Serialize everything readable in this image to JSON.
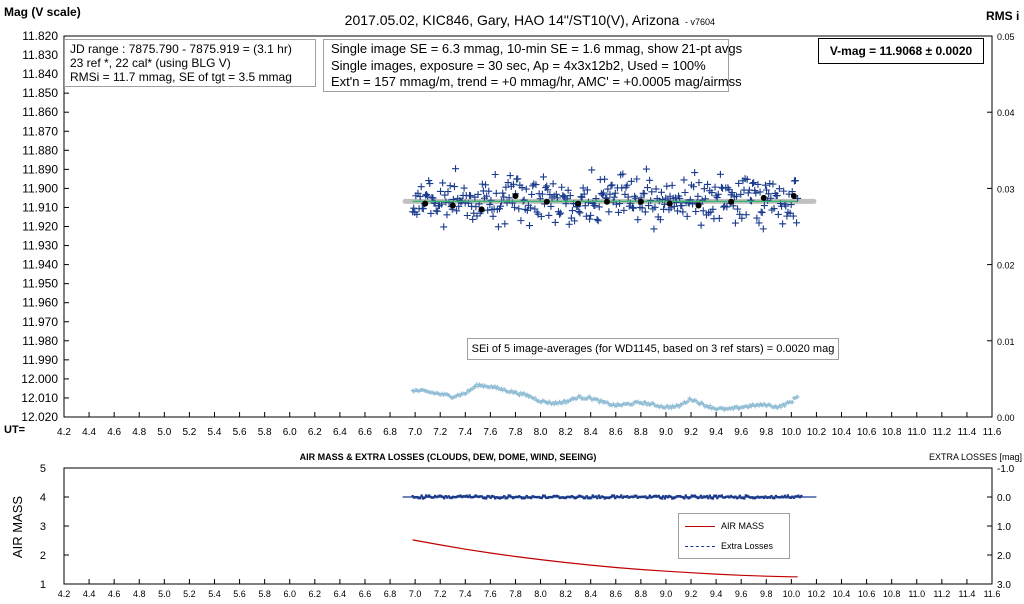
{
  "chart_data": [
    {
      "type": "scatter",
      "title": "2017.05.02,  KIC846,  Gary, HAO 14\"/ST10(V), Arizona",
      "subtitle": "- v7604",
      "ylabel": "Mag (V scale)",
      "y2label": "RMS i",
      "xlabel": "UT=",
      "xlim": [
        4.2,
        11.6
      ],
      "ylim": [
        11.82,
        12.02
      ],
      "y_reversed": true,
      "y2lim": [
        0.0,
        0.05
      ],
      "x_ticks": [
        "4.2",
        "4.4",
        "4.6",
        "4.8",
        "5.0",
        "5.2",
        "5.4",
        "5.6",
        "5.8",
        "6.0",
        "6.2",
        "6.4",
        "6.6",
        "6.8",
        "7.0",
        "7.2",
        "7.4",
        "7.6",
        "7.8",
        "8.0",
        "8.2",
        "8.4",
        "8.6",
        "8.8",
        "9.0",
        "9.2",
        "9.4",
        "9.6",
        "9.8",
        "10.0",
        "10.2",
        "10.4",
        "10.6",
        "10.8",
        "11.0",
        "11.2",
        "11.4",
        "11.6"
      ],
      "y_ticks": [
        "11.820",
        "11.830",
        "11.840",
        "11.850",
        "11.860",
        "11.870",
        "11.880",
        "11.890",
        "11.900",
        "11.910",
        "11.920",
        "11.930",
        "11.940",
        "11.950",
        "11.960",
        "11.970",
        "11.980",
        "11.990",
        "12.000",
        "12.010",
        "12.020"
      ],
      "y2_ticks": [
        "0.00",
        "0.01",
        "0.02",
        "0.03",
        "0.04",
        "0.05"
      ],
      "grid": false,
      "series": [
        {
          "kind": "single-images",
          "color": "#1a3a8c",
          "marker": "plus",
          "x_range": [
            6.98,
            10.05
          ],
          "y_center": 11.906,
          "scatter_mmag": 6.3
        },
        {
          "kind": "21-pt averages",
          "color": "#000000",
          "marker": "dot",
          "x": [
            7.08,
            7.3,
            7.53,
            7.8,
            8.05,
            8.3,
            8.53,
            8.8,
            9.03,
            9.26,
            9.52,
            9.78,
            10.02
          ],
          "y": [
            11.908,
            11.909,
            11.911,
            11.904,
            11.907,
            11.908,
            11.907,
            11.907,
            11.908,
            11.909,
            11.907,
            11.905,
            11.904
          ]
        },
        {
          "kind": "trend",
          "color": "#3cb371",
          "x": [
            6.98,
            10.05
          ],
          "y": [
            11.9068,
            11.9068
          ]
        },
        {
          "kind": "V-mag reference",
          "color": "#c0c0c0",
          "x": [
            6.92,
            10.18
          ],
          "y": [
            11.9068,
            11.9068
          ]
        },
        {
          "kind": "RMS i",
          "axis": "right",
          "color": "#8fbcd4",
          "x": [
            6.98,
            7.1,
            7.2,
            7.3,
            7.4,
            7.5,
            7.6,
            7.7,
            7.8,
            7.9,
            8.0,
            8.1,
            8.2,
            8.3,
            8.4,
            8.5,
            8.6,
            8.7,
            8.8,
            8.9,
            9.0,
            9.1,
            9.2,
            9.3,
            9.4,
            9.5,
            9.6,
            9.7,
            9.8,
            9.9,
            10.0,
            10.05
          ],
          "y": [
            0.0035,
            0.0033,
            0.003,
            0.0027,
            0.0031,
            0.0042,
            0.004,
            0.0036,
            0.0032,
            0.0028,
            0.0021,
            0.0018,
            0.002,
            0.0026,
            0.0025,
            0.0019,
            0.0015,
            0.0017,
            0.0019,
            0.0016,
            0.0013,
            0.0014,
            0.0024,
            0.0016,
            0.0011,
            0.001,
            0.0013,
            0.0015,
            0.0016,
            0.0013,
            0.002,
            0.0028
          ]
        }
      ],
      "annotations": {
        "left_box": [
          "JD range : 7875.790 - 7875.919 = (3.1 hr)",
          "23 ref *, 22 cal* (using BLG V)",
          "RMSi = 11.7 mmag, SE of tgt = 3.5 mmag"
        ],
        "mid_box": [
          "Single image SE = 6.3 mmag, 10-min SE = 1.6 mmag, show 21-pt avgs",
          "Single images, exposure = 30  sec, Ap = 4x3x12b2, Used = 100%",
          "Ext'n = 157 mmag/m, trend = +0 mmag/hr, AMC' = +0.0005 mag/airmss"
        ],
        "vmag": "V-mag = 11.9068 ± 0.0020",
        "sei": "SEi of 5 image-averages (for WD1145, based on 3 ref stars) = 0.0020 mag"
      }
    },
    {
      "type": "line",
      "title": "AIR MASS & EXTRA LOSSES (CLOUDS, DEW, DOME, WIND, SEEING)",
      "ylabel": "AIR MASS",
      "y2label": "EXTRA LOSSES [mag]",
      "xlim": [
        4.2,
        11.6
      ],
      "ylim": [
        1,
        5
      ],
      "y2lim": [
        -1.0,
        3.0
      ],
      "x_ticks": [
        "4.2",
        "4.4",
        "4.6",
        "4.8",
        "5.0",
        "5.2",
        "5.4",
        "5.6",
        "5.8",
        "6.0",
        "6.2",
        "6.4",
        "6.6",
        "6.8",
        "7.0",
        "7.2",
        "7.4",
        "7.6",
        "7.8",
        "8.0",
        "8.2",
        "8.4",
        "8.6",
        "8.8",
        "9.0",
        "9.2",
        "9.4",
        "9.6",
        "9.8",
        "10.0",
        "10.2",
        "10.4",
        "10.6",
        "10.8",
        "11.0",
        "11.2",
        "11.4",
        "11.6"
      ],
      "y_ticks": [
        "1",
        "2",
        "3",
        "4",
        "5"
      ],
      "y2_ticks": [
        "-1.0",
        "0.0",
        "1.0",
        "2.0",
        "3.0"
      ],
      "legend": {
        "placement": "bottom-right",
        "entries": [
          "AIR MASS",
          "Extra Losses"
        ]
      },
      "series": [
        {
          "name": "AIR MASS",
          "color": "#c00000",
          "x": [
            6.98,
            7.2,
            7.4,
            7.6,
            7.8,
            8.0,
            8.2,
            8.4,
            8.6,
            8.8,
            9.0,
            9.2,
            9.4,
            9.6,
            9.8,
            10.0,
            10.05
          ],
          "y": [
            2.52,
            2.35,
            2.2,
            2.07,
            1.95,
            1.84,
            1.74,
            1.65,
            1.57,
            1.5,
            1.44,
            1.39,
            1.34,
            1.3,
            1.27,
            1.25,
            1.25
          ]
        },
        {
          "name": "Extra Losses",
          "axis": "right",
          "color": "#1a3a8c",
          "x_range": [
            6.9,
            10.2
          ],
          "y": 0.0
        }
      ]
    }
  ]
}
